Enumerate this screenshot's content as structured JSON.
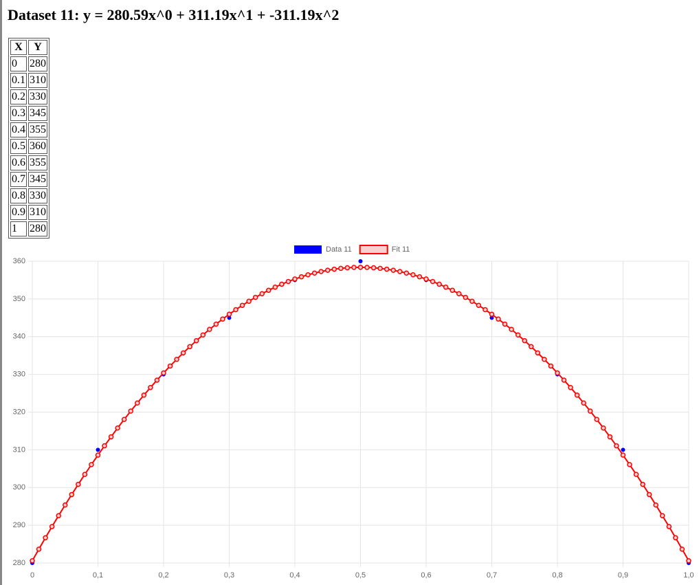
{
  "header": {
    "title": "Dataset 11: y = 280.59x^0 + 311.19x^1 + -311.19x^2"
  },
  "table": {
    "columns": [
      "X",
      "Y"
    ],
    "rows": [
      [
        "0",
        "280"
      ],
      [
        "0.1",
        "310"
      ],
      [
        "0.2",
        "330"
      ],
      [
        "0.3",
        "345"
      ],
      [
        "0.4",
        "355"
      ],
      [
        "0.5",
        "360"
      ],
      [
        "0.6",
        "355"
      ],
      [
        "0.7",
        "345"
      ],
      [
        "0.8",
        "330"
      ],
      [
        "0.9",
        "310"
      ],
      [
        "1",
        "280"
      ]
    ]
  },
  "chart_data": {
    "type": "line",
    "xlim": [
      0,
      1
    ],
    "xticks": [
      0,
      {
        "value": 0.1,
        "label": "0,1"
      },
      {
        "value": 0.2,
        "label": "0,2"
      },
      {
        "value": 0.3,
        "label": "0,3"
      },
      {
        "value": 0.4,
        "label": "0,4"
      },
      {
        "value": 0.5,
        "label": "0,5"
      },
      {
        "value": 0.6,
        "label": "0,6"
      },
      {
        "value": 0.7,
        "label": "0,7"
      },
      {
        "value": 0.8,
        "label": "0,8"
      },
      {
        "value": 0.9,
        "label": "0,9"
      },
      {
        "value": 1,
        "label": "1,0"
      }
    ],
    "ylim": [
      280,
      360
    ],
    "yticks": [
      280,
      290,
      300,
      310,
      320,
      330,
      340,
      350,
      360
    ],
    "grid": true,
    "legend": "top",
    "series": [
      {
        "name": "Data 11",
        "color": "#0000ff",
        "line": false,
        "x": [
          0,
          0.1,
          0.2,
          0.3,
          0.4,
          0.5,
          0.6,
          0.7,
          0.8,
          0.9,
          1
        ],
        "values": [
          280,
          310,
          330,
          345,
          355,
          360,
          355,
          345,
          330,
          310,
          280
        ]
      },
      {
        "name": "Fit 11",
        "color": "#ff0000",
        "fill": "#f8d0d0",
        "line": true,
        "x": [
          0,
          0.01,
          0.02,
          0.03,
          0.04,
          0.05,
          0.06,
          0.07,
          0.08,
          0.09,
          0.1,
          0.11,
          0.12,
          0.13,
          0.14,
          0.15,
          0.16,
          0.17,
          0.18,
          0.19,
          0.2,
          0.21,
          0.22,
          0.23,
          0.24,
          0.25,
          0.26,
          0.27,
          0.28,
          0.29,
          0.3,
          0.31,
          0.32,
          0.33,
          0.34,
          0.35,
          0.36,
          0.37,
          0.38,
          0.39,
          0.4,
          0.41,
          0.42,
          0.43,
          0.44,
          0.45,
          0.46,
          0.47,
          0.48,
          0.49,
          0.5,
          0.51,
          0.52,
          0.53,
          0.54,
          0.55,
          0.56,
          0.57,
          0.58,
          0.59,
          0.6,
          0.61,
          0.62,
          0.63,
          0.64,
          0.65,
          0.66,
          0.67,
          0.68,
          0.69,
          0.7,
          0.71,
          0.72,
          0.73,
          0.74,
          0.75,
          0.76,
          0.77,
          0.78,
          0.79,
          0.8,
          0.81,
          0.82,
          0.83,
          0.84,
          0.85,
          0.86,
          0.87,
          0.88,
          0.89,
          0.9,
          0.91,
          0.92,
          0.93,
          0.94,
          0.95,
          0.96,
          0.97,
          0.98,
          0.99,
          1
        ],
        "values": [
          280.59,
          283.67,
          286.69,
          289.65,
          292.54,
          295.37,
          298.14,
          300.85,
          303.49,
          306.08,
          308.6,
          311.06,
          313.45,
          315.79,
          318.06,
          320.27,
          322.41,
          324.5,
          326.52,
          328.48,
          330.38,
          332.22,
          333.99,
          335.7,
          337.35,
          338.94,
          340.46,
          341.93,
          343.33,
          344.66,
          345.94,
          347.15,
          348.3,
          349.39,
          350.42,
          351.39,
          352.29,
          353.13,
          353.91,
          354.62,
          355.28,
          355.87,
          356.4,
          356.86,
          357.27,
          357.61,
          357.89,
          358.11,
          358.26,
          358.36,
          358.39,
          358.36,
          358.26,
          358.11,
          357.89,
          357.61,
          357.27,
          356.86,
          356.4,
          355.87,
          355.28,
          354.62,
          353.91,
          353.13,
          352.29,
          351.39,
          350.42,
          349.39,
          348.3,
          347.15,
          345.94,
          344.66,
          343.33,
          341.93,
          340.46,
          338.94,
          337.35,
          335.7,
          333.99,
          332.22,
          330.38,
          328.48,
          326.52,
          324.5,
          322.41,
          320.27,
          318.06,
          315.79,
          313.45,
          311.06,
          308.6,
          306.08,
          303.49,
          300.85,
          298.14,
          295.37,
          292.54,
          289.65,
          286.69,
          283.67,
          280.59
        ]
      }
    ]
  }
}
